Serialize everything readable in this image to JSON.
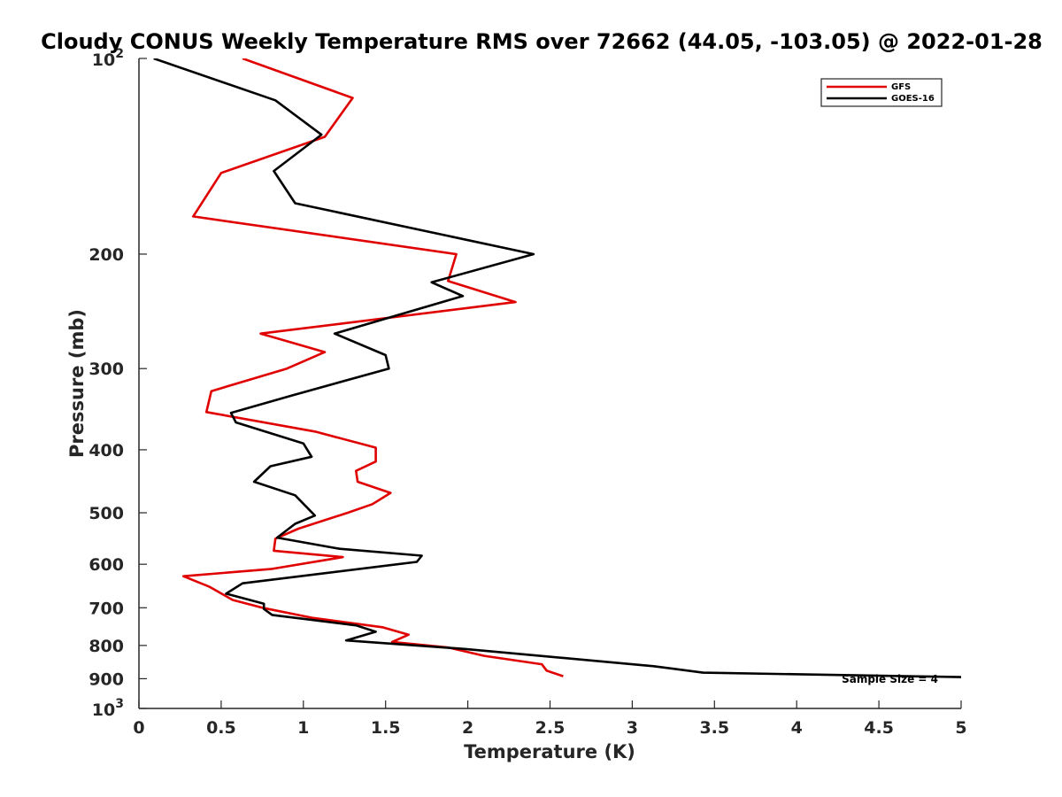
{
  "chart_data": {
    "type": "line",
    "title": "Cloudy CONUS Weekly Temperature RMS over 72662 (44.05, -103.05) @ 2022-01-28",
    "xlabel": "Temperature (K)",
    "ylabel": "Pressure (mb)",
    "xlim": [
      0,
      5
    ],
    "ylim": [
      100,
      1000
    ],
    "y_scale": "log",
    "y_reversed": true,
    "grid": false,
    "legend_position": "top-right",
    "x_ticks": [
      "0",
      "0.5",
      "1",
      "1.5",
      "2",
      "2.5",
      "3",
      "3.5",
      "4",
      "4.5",
      "5"
    ],
    "y_ticks": [
      {
        "value": 100,
        "base": "10",
        "exp": "2"
      },
      {
        "value": 200,
        "label": "200"
      },
      {
        "value": 300,
        "label": "300"
      },
      {
        "value": 400,
        "label": "400"
      },
      {
        "value": 500,
        "label": "500"
      },
      {
        "value": 600,
        "label": "600"
      },
      {
        "value": 700,
        "label": "700"
      },
      {
        "value": 800,
        "label": "800"
      },
      {
        "value": 900,
        "label": "900"
      },
      {
        "value": 1000,
        "base": "10",
        "exp": "3"
      }
    ],
    "annotation": "Sample Size = 4",
    "series": [
      {
        "name": "GFS",
        "color": "#e00000",
        "points": [
          [
            0.63,
            100
          ],
          [
            1.3,
            115
          ],
          [
            1.13,
            132
          ],
          [
            0.5,
            150
          ],
          [
            0.33,
            175
          ],
          [
            1.93,
            200
          ],
          [
            1.88,
            220
          ],
          [
            2.29,
            237
          ],
          [
            0.74,
            265
          ],
          [
            1.13,
            283
          ],
          [
            0.9,
            300
          ],
          [
            0.44,
            325
          ],
          [
            0.41,
            350
          ],
          [
            1.07,
            375
          ],
          [
            1.44,
            397
          ],
          [
            1.44,
            417
          ],
          [
            1.32,
            431
          ],
          [
            1.33,
            448
          ],
          [
            1.53,
            466
          ],
          [
            1.42,
            485
          ],
          [
            1.27,
            500
          ],
          [
            0.97,
            529
          ],
          [
            0.83,
            548
          ],
          [
            0.82,
            572
          ],
          [
            1.24,
            585
          ],
          [
            0.81,
            610
          ],
          [
            0.27,
            626
          ],
          [
            0.43,
            650
          ],
          [
            0.57,
            681
          ],
          [
            0.75,
            700
          ],
          [
            1.05,
            725
          ],
          [
            1.48,
            750
          ],
          [
            1.64,
            770
          ],
          [
            1.54,
            790
          ],
          [
            1.88,
            806
          ],
          [
            2.1,
            830
          ],
          [
            2.45,
            855
          ],
          [
            2.48,
            875
          ],
          [
            2.58,
            892
          ]
        ]
      },
      {
        "name": "GOES-16",
        "color": "#000000",
        "points": [
          [
            0.09,
            100
          ],
          [
            0.83,
            116
          ],
          [
            1.11,
            131
          ],
          [
            0.82,
            149
          ],
          [
            0.95,
            167
          ],
          [
            2.4,
            200
          ],
          [
            1.78,
            221
          ],
          [
            1.97,
            232
          ],
          [
            1.19,
            265
          ],
          [
            1.5,
            286
          ],
          [
            1.52,
            300
          ],
          [
            0.93,
            330
          ],
          [
            0.56,
            351
          ],
          [
            0.59,
            363
          ],
          [
            1.0,
            391
          ],
          [
            1.05,
            410
          ],
          [
            0.8,
            424
          ],
          [
            0.7,
            448
          ],
          [
            0.95,
            470
          ],
          [
            1.07,
            505
          ],
          [
            0.95,
            520
          ],
          [
            0.84,
            546
          ],
          [
            1.22,
            568
          ],
          [
            1.72,
            582
          ],
          [
            1.69,
            595
          ],
          [
            0.63,
            642
          ],
          [
            0.53,
            666
          ],
          [
            0.76,
            690
          ],
          [
            0.76,
            703
          ],
          [
            0.81,
            718
          ],
          [
            1.32,
            745
          ],
          [
            1.44,
            762
          ],
          [
            1.26,
            786
          ],
          [
            1.98,
            810
          ],
          [
            3.13,
            861
          ],
          [
            3.43,
            881
          ],
          [
            5.0,
            895
          ]
        ]
      }
    ]
  }
}
